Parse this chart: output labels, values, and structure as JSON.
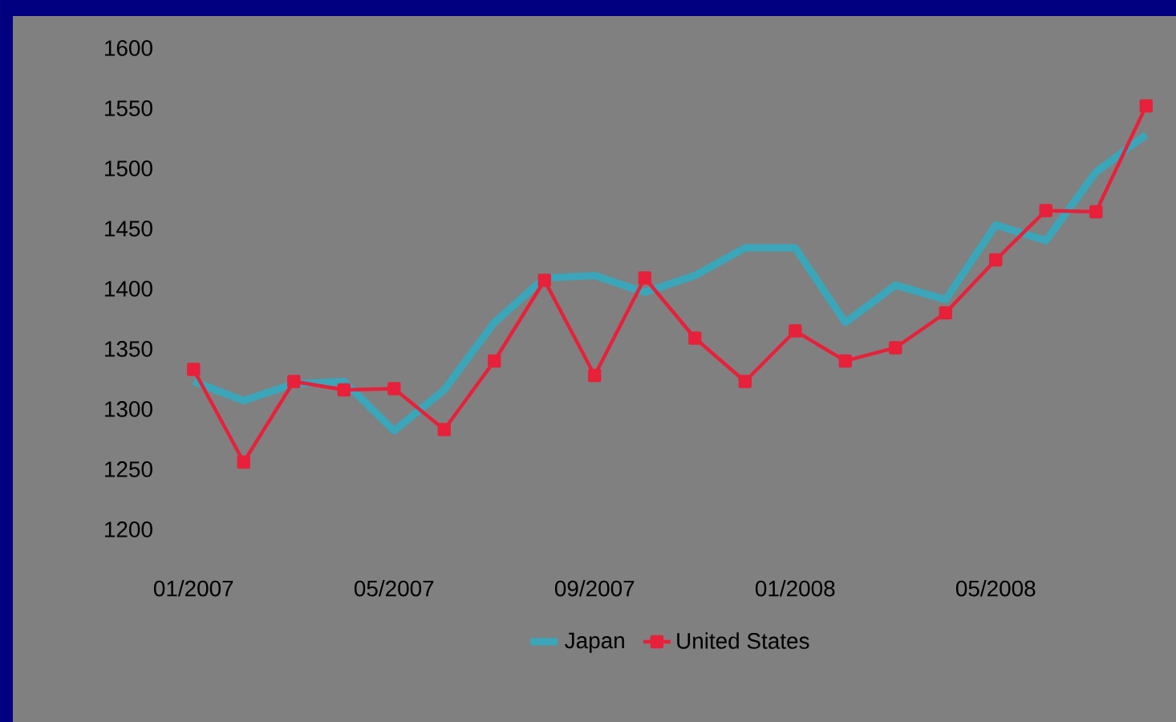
{
  "chart_data": {
    "type": "line",
    "categories": [
      "01/2007",
      null,
      null,
      null,
      "05/2007",
      null,
      null,
      null,
      "09/2007",
      null,
      null,
      null,
      "01/2008",
      null,
      null,
      null,
      "05/2008",
      null,
      null,
      null
    ],
    "ylim": [
      1200,
      1600
    ],
    "yticks": [
      1200,
      1250,
      1300,
      1350,
      1400,
      1450,
      1500,
      1550,
      1600
    ],
    "grid": false,
    "legend": "bottom",
    "line_style": "solid",
    "series": [
      {
        "name": "Japan",
        "color": "#3aa6b9",
        "marker": "none",
        "values": [
          1323,
          1307,
          1321,
          1323,
          1282,
          1316,
          1372,
          1409,
          1411,
          1397,
          1411,
          1434,
          1434,
          1372,
          1403,
          1391,
          1453,
          1440,
          1497,
          1528
        ]
      },
      {
        "name": "United States",
        "color": "#e8203a",
        "marker": "square",
        "values": [
          1333,
          1256,
          1323,
          1316,
          1317,
          1283,
          1340,
          1407,
          1328,
          1409,
          1359,
          1323,
          1365,
          1340,
          1351,
          1380,
          1424,
          1465,
          1464,
          1552
        ]
      }
    ]
  }
}
